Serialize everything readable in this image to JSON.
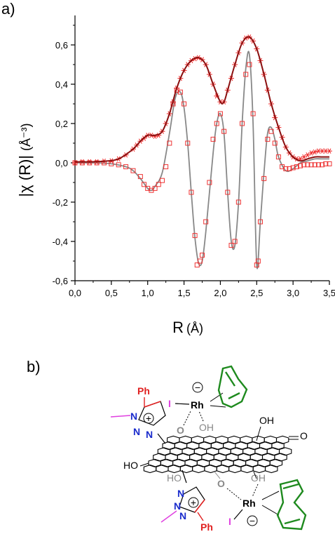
{
  "panel_a_label": "a)",
  "panel_b_label": "b)",
  "chart_data": {
    "type": "line",
    "xlabel_symbol": "R",
    "xlabel_unit": "(Å)",
    "ylabel_symbol": "|χ (R)|",
    "ylabel_unit": "(Å⁻³)",
    "xlim": [
      0,
      3.5
    ],
    "ylim": [
      -0.6,
      0.75
    ],
    "xticks": [
      "0,0",
      "0,5",
      "1,0",
      "1,5",
      "2,0",
      "2,5",
      "3,0",
      "3,5"
    ],
    "yticks": [
      "-0,6",
      "-0,4",
      "-0,2",
      "0,0",
      "0,2",
      "0,4",
      "0,6"
    ],
    "grid": false,
    "series": [
      {
        "role": "magnitude-fit",
        "color": "#8b1010",
        "points": [
          [
            0,
            0.005
          ],
          [
            0.2,
            0.005
          ],
          [
            0.4,
            0.008
          ],
          [
            0.6,
            0.02
          ],
          [
            0.8,
            0.07
          ],
          [
            0.9,
            0.11
          ],
          [
            1.0,
            0.14
          ],
          [
            1.1,
            0.14
          ],
          [
            1.2,
            0.16
          ],
          [
            1.3,
            0.25
          ],
          [
            1.4,
            0.38
          ],
          [
            1.5,
            0.47
          ],
          [
            1.6,
            0.52
          ],
          [
            1.7,
            0.535
          ],
          [
            1.8,
            0.5
          ],
          [
            1.9,
            0.4
          ],
          [
            2.0,
            0.31
          ],
          [
            2.05,
            0.31
          ],
          [
            2.1,
            0.37
          ],
          [
            2.2,
            0.5
          ],
          [
            2.3,
            0.61
          ],
          [
            2.4,
            0.64
          ],
          [
            2.5,
            0.58
          ],
          [
            2.6,
            0.45
          ],
          [
            2.7,
            0.3
          ],
          [
            2.8,
            0.18
          ],
          [
            2.9,
            0.08
          ],
          [
            3.0,
            0.03
          ],
          [
            3.1,
            0.01
          ],
          [
            3.2,
            0.02
          ],
          [
            3.3,
            0.03
          ],
          [
            3.4,
            0.03
          ],
          [
            3.5,
            0.03
          ]
        ]
      },
      {
        "role": "magnitude-data",
        "color": "#ee2222",
        "marker": "asterisk",
        "points": [
          [
            0,
            0.0
          ],
          [
            0.1,
            0.005
          ],
          [
            0.2,
            0.005
          ],
          [
            0.3,
            0.005
          ],
          [
            0.4,
            0.008
          ],
          [
            0.5,
            0.01
          ],
          [
            0.6,
            0.02
          ],
          [
            0.7,
            0.04
          ],
          [
            0.8,
            0.07
          ],
          [
            0.85,
            0.09
          ],
          [
            0.9,
            0.11
          ],
          [
            0.95,
            0.125
          ],
          [
            1.0,
            0.14
          ],
          [
            1.05,
            0.14
          ],
          [
            1.1,
            0.135
          ],
          [
            1.15,
            0.14
          ],
          [
            1.2,
            0.16
          ],
          [
            1.25,
            0.2
          ],
          [
            1.3,
            0.25
          ],
          [
            1.35,
            0.31
          ],
          [
            1.4,
            0.38
          ],
          [
            1.45,
            0.43
          ],
          [
            1.5,
            0.47
          ],
          [
            1.55,
            0.5
          ],
          [
            1.6,
            0.52
          ],
          [
            1.65,
            0.53
          ],
          [
            1.7,
            0.535
          ],
          [
            1.75,
            0.525
          ],
          [
            1.8,
            0.5
          ],
          [
            1.85,
            0.45
          ],
          [
            1.9,
            0.4
          ],
          [
            1.95,
            0.34
          ],
          [
            2.0,
            0.31
          ],
          [
            2.05,
            0.31
          ],
          [
            2.1,
            0.37
          ],
          [
            2.15,
            0.43
          ],
          [
            2.2,
            0.5
          ],
          [
            2.25,
            0.56
          ],
          [
            2.3,
            0.61
          ],
          [
            2.35,
            0.635
          ],
          [
            2.4,
            0.64
          ],
          [
            2.45,
            0.62
          ],
          [
            2.5,
            0.58
          ],
          [
            2.55,
            0.52
          ],
          [
            2.6,
            0.45
          ],
          [
            2.65,
            0.37
          ],
          [
            2.7,
            0.3
          ],
          [
            2.75,
            0.23
          ],
          [
            2.8,
            0.18
          ],
          [
            2.85,
            0.13
          ],
          [
            2.9,
            0.08
          ],
          [
            2.95,
            0.05
          ],
          [
            3.0,
            0.03
          ],
          [
            3.05,
            0.02
          ],
          [
            3.1,
            0.02
          ],
          [
            3.15,
            0.03
          ],
          [
            3.2,
            0.04
          ],
          [
            3.25,
            0.05
          ],
          [
            3.3,
            0.055
          ],
          [
            3.35,
            0.06
          ],
          [
            3.4,
            0.06
          ],
          [
            3.45,
            0.06
          ],
          [
            3.5,
            0.06
          ]
        ]
      },
      {
        "role": "imaginary-fit",
        "color": "#888888",
        "points": [
          [
            0,
            0.0
          ],
          [
            0.3,
            0.0
          ],
          [
            0.5,
            -0.005
          ],
          [
            0.7,
            -0.02
          ],
          [
            0.8,
            -0.04
          ],
          [
            0.9,
            -0.08
          ],
          [
            1.0,
            -0.13
          ],
          [
            1.05,
            -0.14
          ],
          [
            1.1,
            -0.12
          ],
          [
            1.2,
            -0.05
          ],
          [
            1.3,
            0.15
          ],
          [
            1.38,
            0.33
          ],
          [
            1.45,
            0.36
          ],
          [
            1.5,
            0.28
          ],
          [
            1.55,
            0.1
          ],
          [
            1.6,
            -0.15
          ],
          [
            1.65,
            -0.38
          ],
          [
            1.7,
            -0.51
          ],
          [
            1.75,
            -0.5
          ],
          [
            1.8,
            -0.35
          ],
          [
            1.9,
            0.05
          ],
          [
            1.95,
            0.2
          ],
          [
            2.0,
            0.25
          ],
          [
            2.05,
            0.15
          ],
          [
            2.1,
            -0.15
          ],
          [
            2.15,
            -0.4
          ],
          [
            2.2,
            -0.42
          ],
          [
            2.25,
            -0.2
          ],
          [
            2.3,
            0.2
          ],
          [
            2.35,
            0.48
          ],
          [
            2.4,
            0.55
          ],
          [
            2.45,
            0.2
          ],
          [
            2.5,
            -0.52
          ],
          [
            2.55,
            -0.3
          ],
          [
            2.6,
            -0.05
          ],
          [
            2.65,
            0.15
          ],
          [
            2.7,
            0.18
          ],
          [
            2.75,
            0.12
          ],
          [
            2.8,
            0.03
          ],
          [
            2.9,
            -0.04
          ],
          [
            3.0,
            -0.03
          ],
          [
            3.1,
            0.0
          ],
          [
            3.2,
            0.01
          ],
          [
            3.3,
            0.02
          ],
          [
            3.4,
            0.02
          ],
          [
            3.5,
            0.02
          ]
        ]
      },
      {
        "role": "imaginary-data",
        "color": "#ee3333",
        "marker": "open-square",
        "points": [
          [
            0,
            0.0
          ],
          [
            0.1,
            0.0
          ],
          [
            0.2,
            0.0
          ],
          [
            0.3,
            0.0
          ],
          [
            0.4,
            0.0
          ],
          [
            0.5,
            -0.005
          ],
          [
            0.6,
            -0.01
          ],
          [
            0.7,
            -0.02
          ],
          [
            0.8,
            -0.04
          ],
          [
            0.9,
            -0.07
          ],
          [
            0.95,
            -0.11
          ],
          [
            1.0,
            -0.13
          ],
          [
            1.05,
            -0.14
          ],
          [
            1.1,
            -0.13
          ],
          [
            1.15,
            -0.11
          ],
          [
            1.2,
            -0.09
          ],
          [
            1.25,
            -0.02
          ],
          [
            1.3,
            0.1
          ],
          [
            1.35,
            0.3
          ],
          [
            1.4,
            0.37
          ],
          [
            1.45,
            0.36
          ],
          [
            1.5,
            0.3
          ],
          [
            1.55,
            0.1
          ],
          [
            1.6,
            -0.15
          ],
          [
            1.65,
            -0.37
          ],
          [
            1.68,
            -0.52
          ],
          [
            1.72,
            -0.5
          ],
          [
            1.75,
            -0.47
          ],
          [
            1.8,
            -0.3
          ],
          [
            1.85,
            -0.1
          ],
          [
            1.9,
            0.12
          ],
          [
            1.95,
            0.2
          ],
          [
            2.0,
            0.25
          ],
          [
            2.05,
            0.16
          ],
          [
            2.1,
            -0.15
          ],
          [
            2.15,
            -0.42
          ],
          [
            2.2,
            -0.4
          ],
          [
            2.25,
            -0.2
          ],
          [
            2.3,
            0.2
          ],
          [
            2.35,
            0.45
          ],
          [
            2.4,
            0.5
          ],
          [
            2.45,
            0.25
          ],
          [
            2.5,
            -0.52
          ],
          [
            2.52,
            -0.5
          ],
          [
            2.55,
            -0.3
          ],
          [
            2.6,
            -0.08
          ],
          [
            2.65,
            0.12
          ],
          [
            2.7,
            0.16
          ],
          [
            2.75,
            0.1
          ],
          [
            2.8,
            0.03
          ],
          [
            2.85,
            -0.02
          ],
          [
            2.9,
            -0.03
          ],
          [
            2.95,
            -0.03
          ],
          [
            3.0,
            -0.025
          ],
          [
            3.05,
            -0.02
          ],
          [
            3.1,
            -0.015
          ],
          [
            3.15,
            -0.01
          ],
          [
            3.2,
            -0.01
          ],
          [
            3.25,
            -0.01
          ],
          [
            3.3,
            -0.01
          ],
          [
            3.35,
            -0.01
          ],
          [
            3.4,
            -0.01
          ],
          [
            3.45,
            -0.005
          ],
          [
            3.5,
            -0.005
          ]
        ]
      }
    ]
  },
  "molecule": {
    "ph_top": "Ph",
    "ph_bottom": "Ph",
    "iodide_top": "I",
    "iodide_bottom": "I",
    "rh_top": "Rh",
    "rh_bottom": "Rh",
    "minus_sign": "−",
    "plus_sign": "+",
    "n_labels": [
      "N",
      "N",
      "N"
    ],
    "oxygen": "O",
    "hydroxyl": "OH",
    "hydroxyl_left": "HO",
    "carbonyl_o": "O",
    "colors": {
      "phenyl": "#e02020",
      "triazole_n": "#1a2ccc",
      "methyl": "#e040e0",
      "iodide": "#e040e0",
      "cod": "#1e8a1e",
      "oxygen": "#888888",
      "skeleton": "#000000"
    }
  }
}
